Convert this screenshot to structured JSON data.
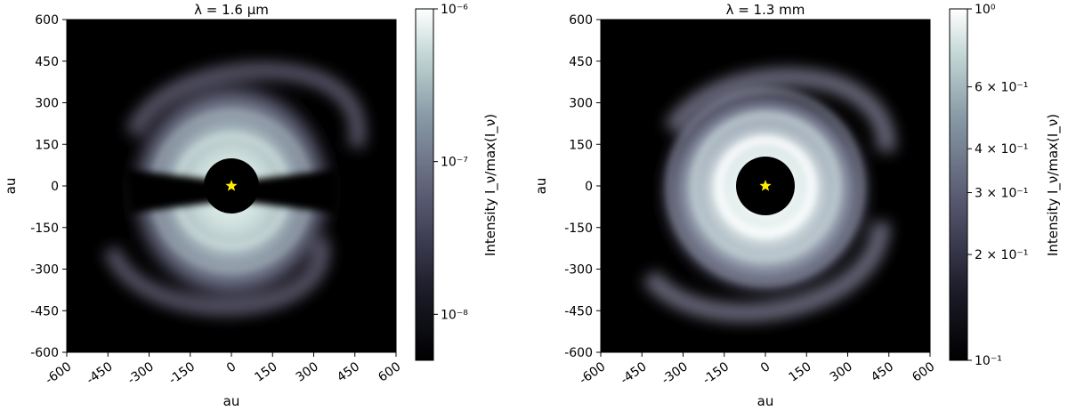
{
  "chart_data": [
    {
      "type": "heatmap",
      "title": "λ = 1.6 μm",
      "xlabel": "au",
      "ylabel": "au",
      "xlim": [
        -600,
        600
      ],
      "ylim": [
        -600,
        600
      ],
      "x_ticks": [
        -600,
        -450,
        -300,
        -150,
        0,
        150,
        300,
        450,
        600
      ],
      "y_ticks": [
        600,
        450,
        300,
        150,
        0,
        -150,
        -300,
        -450,
        -600
      ],
      "colorbar": {
        "label": "Intensity I_ν/max(I_ν)",
        "scale": "log",
        "range": [
          5e-09,
          1e-06
        ],
        "tick_labels": [
          "10⁻⁶",
          "10⁻⁷",
          "10⁻⁸"
        ],
        "tick_values": [
          1e-06,
          1e-07,
          1e-08
        ]
      },
      "star_position": [
        0,
        0
      ],
      "colors": {
        "star": "#ffee00",
        "low": "#000000",
        "high": "#ffffff"
      }
    },
    {
      "type": "heatmap",
      "title": "λ = 1.3 mm",
      "xlabel": "au",
      "ylabel": "au",
      "xlim": [
        -600,
        600
      ],
      "ylim": [
        -600,
        600
      ],
      "x_ticks": [
        -600,
        -450,
        -300,
        -150,
        0,
        150,
        300,
        450,
        600
      ],
      "y_ticks": [
        600,
        450,
        300,
        150,
        0,
        -150,
        -300,
        -450,
        -600
      ],
      "colorbar": {
        "label": "Intensity I_ν/max(I_ν)",
        "scale": "log",
        "range": [
          0.1,
          1
        ],
        "tick_labels": [
          "10⁰",
          "6 × 10⁻¹",
          "4 × 10⁻¹",
          "3 × 10⁻¹",
          "2 × 10⁻¹",
          "10⁻¹"
        ],
        "tick_values": [
          1,
          0.6,
          0.4,
          0.3,
          0.2,
          0.1
        ]
      },
      "star_position": [
        0,
        0
      ],
      "colors": {
        "star": "#ffee00",
        "low": "#000000",
        "high": "#ffffff"
      }
    }
  ]
}
